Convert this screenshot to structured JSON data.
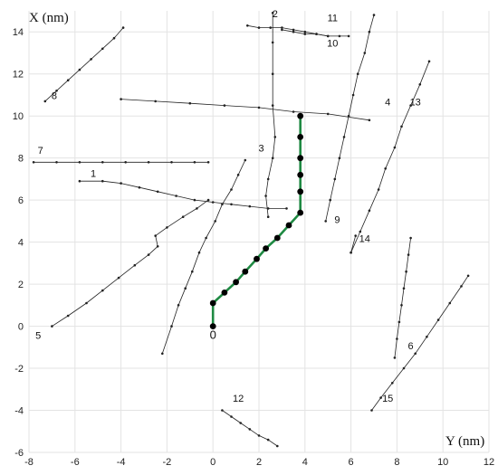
{
  "chart_data": {
    "type": "line",
    "xlabel": "Y (nm)",
    "ylabel": "X (nm)",
    "xlim": [
      -8,
      12
    ],
    "ylim": [
      -6,
      15
    ],
    "grid": true,
    "x_ticks": [
      "-8",
      "-6",
      "-4",
      "-2",
      "0",
      "2",
      "4",
      "6",
      "8",
      "10",
      "12"
    ],
    "y_ticks": [
      "-6",
      "-4",
      "-2",
      "0",
      "2",
      "4",
      "6",
      "8",
      "10",
      "12",
      "14"
    ],
    "colors": {
      "highlight": "#1f8a43",
      "trajectory": "#222222"
    },
    "series": [
      {
        "name": "0",
        "highlight": true,
        "label_at": [
          0,
          -0.6
        ],
        "points": [
          [
            0,
            0
          ],
          [
            0,
            1.1
          ],
          [
            0.5,
            1.6
          ],
          [
            1.0,
            2.1
          ],
          [
            1.4,
            2.6
          ],
          [
            1.9,
            3.2
          ],
          [
            2.3,
            3.7
          ],
          [
            2.8,
            4.2
          ],
          [
            3.3,
            4.8
          ],
          [
            3.8,
            5.4
          ],
          [
            3.8,
            6.4
          ],
          [
            3.8,
            7.2
          ],
          [
            3.8,
            8.0
          ],
          [
            3.8,
            9.0
          ],
          [
            3.8,
            10.0
          ]
        ]
      },
      {
        "name": "1",
        "label_at": [
          -5.2,
          7.1
        ],
        "points": [
          [
            -5.8,
            6.9
          ],
          [
            -4.8,
            6.9
          ],
          [
            -4.0,
            6.8
          ],
          [
            -3.2,
            6.6
          ],
          [
            -2.4,
            6.4
          ],
          [
            -1.6,
            6.2
          ],
          [
            -0.8,
            6.0
          ],
          [
            0.0,
            5.9
          ],
          [
            0.8,
            5.8
          ],
          [
            1.6,
            5.7
          ],
          [
            2.4,
            5.6
          ],
          [
            3.2,
            5.6
          ]
        ]
      },
      {
        "name": "2",
        "label_at": [
          2.7,
          14.7
        ],
        "points": [
          [
            2.6,
            14.9
          ],
          [
            2.6,
            13.5
          ],
          [
            2.6,
            12.0
          ],
          [
            2.6,
            10.5
          ],
          [
            2.7,
            9.0
          ],
          [
            2.6,
            8.0
          ],
          [
            2.4,
            7.0
          ],
          [
            2.3,
            6.2
          ],
          [
            2.4,
            5.2
          ]
        ]
      },
      {
        "name": "3",
        "label_at": [
          2.1,
          8.3
        ],
        "points": [
          [
            1.4,
            7.9
          ],
          [
            1.1,
            7.2
          ],
          [
            0.8,
            6.5
          ],
          [
            0.4,
            5.8
          ],
          [
            0.1,
            5.0
          ],
          [
            -0.3,
            4.2
          ],
          [
            -0.6,
            3.5
          ],
          [
            -0.9,
            2.6
          ],
          [
            -1.2,
            1.8
          ],
          [
            -1.5,
            1.0
          ],
          [
            -1.8,
            0.0
          ],
          [
            -2.2,
            -1.3
          ]
        ]
      },
      {
        "name": "4",
        "label_at": [
          7.6,
          10.5
        ],
        "points": [
          [
            -4.0,
            10.8
          ],
          [
            -2.5,
            10.7
          ],
          [
            -1.0,
            10.6
          ],
          [
            0.5,
            10.5
          ],
          [
            2.0,
            10.4
          ],
          [
            3.5,
            10.2
          ],
          [
            5.0,
            10.1
          ],
          [
            6.8,
            9.8
          ]
        ]
      },
      {
        "name": "5",
        "label_at": [
          -7.6,
          -0.6
        ],
        "points": [
          [
            -7.0,
            0.0
          ],
          [
            -6.3,
            0.5
          ],
          [
            -5.5,
            1.1
          ],
          [
            -4.8,
            1.7
          ],
          [
            -4.1,
            2.3
          ],
          [
            -3.4,
            2.9
          ],
          [
            -2.8,
            3.4
          ],
          [
            -2.4,
            3.8
          ],
          [
            -2.5,
            4.3
          ],
          [
            -2.0,
            4.7
          ],
          [
            -1.3,
            5.2
          ],
          [
            -0.7,
            5.6
          ],
          [
            -0.2,
            6.0
          ]
        ]
      },
      {
        "name": "6",
        "label_at": [
          8.6,
          -1.1
        ],
        "points": [
          [
            7.9,
            -1.5
          ],
          [
            8.0,
            -0.6
          ],
          [
            8.1,
            0.2
          ],
          [
            8.2,
            1.0
          ],
          [
            8.3,
            1.8
          ],
          [
            8.4,
            2.6
          ],
          [
            8.5,
            3.4
          ],
          [
            8.6,
            4.2
          ]
        ]
      },
      {
        "name": "7",
        "label_at": [
          -7.5,
          8.2
        ],
        "points": [
          [
            -7.8,
            7.8
          ],
          [
            -6.8,
            7.8
          ],
          [
            -5.8,
            7.8
          ],
          [
            -4.8,
            7.8
          ],
          [
            -3.8,
            7.8
          ],
          [
            -2.8,
            7.8
          ],
          [
            -1.8,
            7.8
          ],
          [
            -0.8,
            7.8
          ],
          [
            -0.2,
            7.8
          ]
        ]
      },
      {
        "name": "8",
        "label_at": [
          -6.9,
          10.8
        ],
        "points": [
          [
            -7.3,
            10.7
          ],
          [
            -6.8,
            11.2
          ],
          [
            -6.3,
            11.7
          ],
          [
            -5.8,
            12.2
          ],
          [
            -5.3,
            12.7
          ],
          [
            -4.8,
            13.2
          ],
          [
            -4.3,
            13.7
          ],
          [
            -3.9,
            14.2
          ]
        ]
      },
      {
        "name": "9",
        "label_at": [
          5.4,
          4.9
        ],
        "points": [
          [
            4.9,
            5.0
          ],
          [
            5.1,
            6.0
          ],
          [
            5.3,
            7.0
          ],
          [
            5.5,
            8.0
          ],
          [
            5.7,
            9.0
          ],
          [
            5.9,
            10.0
          ],
          [
            6.1,
            11.0
          ],
          [
            6.3,
            12.0
          ],
          [
            6.6,
            13.0
          ],
          [
            6.8,
            14.0
          ],
          [
            7.0,
            14.8
          ]
        ]
      },
      {
        "name": "10",
        "label_at": [
          5.2,
          13.3
        ],
        "points": [
          [
            3.0,
            14.1
          ],
          [
            3.5,
            14.0
          ],
          [
            4.0,
            13.9
          ],
          [
            4.5,
            13.9
          ],
          [
            5.0,
            13.8
          ],
          [
            5.5,
            13.8
          ],
          [
            5.9,
            13.8
          ]
        ]
      },
      {
        "name": "11",
        "label_at": [
          5.2,
          14.5
        ],
        "points": [
          [
            1.5,
            14.3
          ],
          [
            2.0,
            14.2
          ],
          [
            2.5,
            14.2
          ],
          [
            3.0,
            14.2
          ],
          [
            3.5,
            14.1
          ],
          [
            4.0,
            14.0
          ],
          [
            4.5,
            13.9
          ],
          [
            5.0,
            13.8
          ]
        ]
      },
      {
        "name": "12",
        "label_at": [
          1.1,
          -3.6
        ],
        "points": [
          [
            0.4,
            -4.0
          ],
          [
            0.8,
            -4.3
          ],
          [
            1.2,
            -4.6
          ],
          [
            1.6,
            -4.9
          ],
          [
            2.0,
            -5.2
          ],
          [
            2.4,
            -5.4
          ],
          [
            2.8,
            -5.7
          ]
        ]
      },
      {
        "name": "13",
        "label_at": [
          8.8,
          10.5
        ],
        "points": [
          [
            6.0,
            3.5
          ],
          [
            6.4,
            4.5
          ],
          [
            6.8,
            5.5
          ],
          [
            7.2,
            6.5
          ],
          [
            7.5,
            7.5
          ],
          [
            7.9,
            8.5
          ],
          [
            8.2,
            9.5
          ],
          [
            8.6,
            10.5
          ],
          [
            9.0,
            11.5
          ],
          [
            9.4,
            12.6
          ]
        ]
      },
      {
        "name": "14",
        "label_at": [
          6.6,
          4.0
        ],
        "points": [
          [
            6.0,
            3.5
          ],
          [
            6.2,
            4.3
          ]
        ]
      },
      {
        "name": "15",
        "label_at": [
          7.6,
          -3.6
        ],
        "points": [
          [
            6.9,
            -4.0
          ],
          [
            7.3,
            -3.4
          ],
          [
            7.8,
            -2.7
          ],
          [
            8.3,
            -2.0
          ],
          [
            8.8,
            -1.3
          ],
          [
            9.3,
            -0.5
          ],
          [
            9.8,
            0.3
          ],
          [
            10.3,
            1.1
          ],
          [
            10.8,
            1.9
          ],
          [
            11.1,
            2.4
          ]
        ]
      }
    ]
  }
}
